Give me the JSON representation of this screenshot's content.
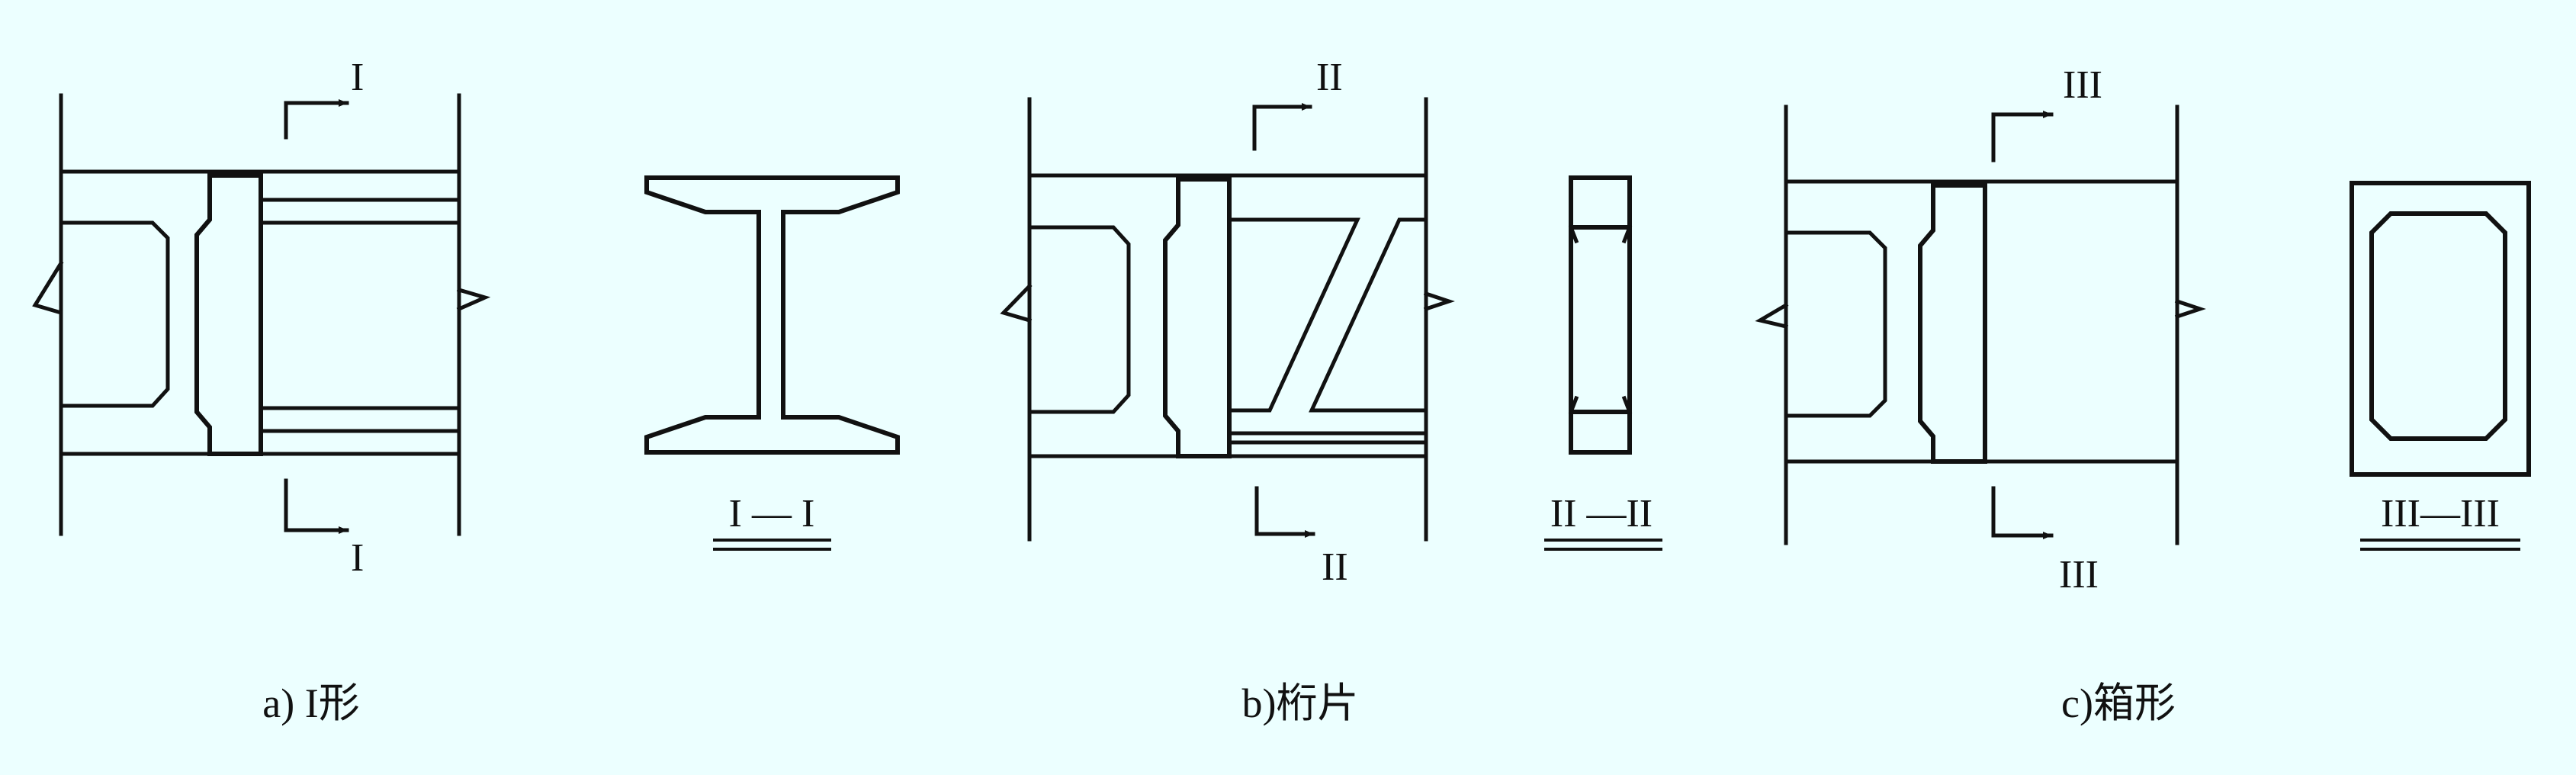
{
  "labels": {
    "section_i": "I",
    "section_ii": "II",
    "section_iii": "III",
    "section_i_title": "I — I",
    "section_ii_title": "II —II",
    "section_iii_title": "III—III"
  },
  "captions": {
    "a": "a) I形",
    "b": "b)桁片",
    "c": "c)箱形"
  },
  "colors": {
    "background": "#ecffff",
    "line": "#111111"
  }
}
